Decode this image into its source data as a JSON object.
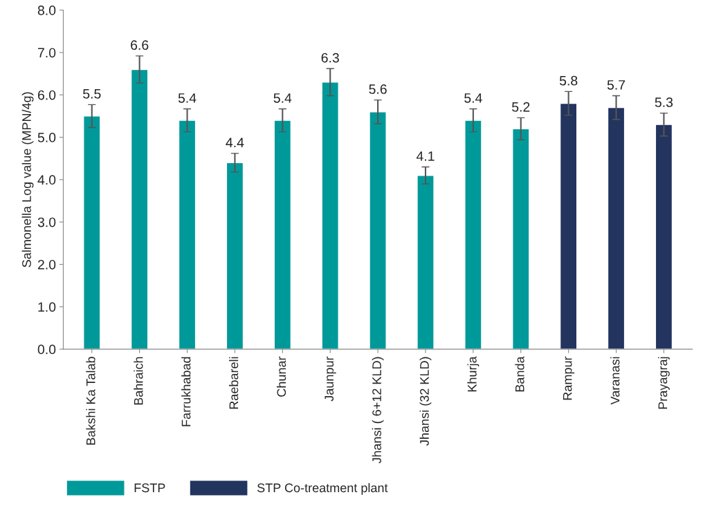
{
  "chart_data": {
    "type": "bar",
    "ylabel": "Salmonella Log value (MPN/4g)",
    "categories": [
      "Bakshi Ka Talab",
      "Bahraich",
      "Farrukhabad",
      "Raebareli",
      "Chunar",
      "Jaunpur",
      "Jhansi ( 6+12 KLD)",
      "Jhansi (32 KLD)",
      "Khurja",
      "Banda",
      "Rampur",
      "Varanasi",
      "Prayagraj"
    ],
    "series": [
      {
        "name": "FSTP",
        "color": "#009999",
        "values": [
          5.5,
          6.6,
          5.4,
          4.4,
          5.4,
          6.3,
          5.6,
          4.1,
          5.4,
          5.2,
          null,
          null,
          null
        ],
        "errors": [
          0.27,
          0.32,
          0.27,
          0.22,
          0.27,
          0.32,
          0.28,
          0.2,
          0.27,
          0.26,
          null,
          null,
          null
        ]
      },
      {
        "name": "STP Co-treatment plant",
        "color": "#23345f",
        "values": [
          null,
          null,
          null,
          null,
          null,
          null,
          null,
          null,
          null,
          null,
          5.8,
          5.7,
          5.3
        ],
        "errors": [
          null,
          null,
          null,
          null,
          null,
          null,
          null,
          null,
          null,
          null,
          0.28,
          0.28,
          0.27
        ]
      }
    ],
    "ylim": [
      0,
      8
    ],
    "yticks": [
      {
        "value": 0,
        "label": "0.0"
      },
      {
        "value": 1,
        "label": "1.0"
      },
      {
        "value": 2,
        "label": "2.0"
      },
      {
        "value": 3,
        "label": "3.0"
      },
      {
        "value": 4,
        "label": "4.0"
      },
      {
        "value": 5,
        "label": "5.0"
      },
      {
        "value": 6,
        "label": "6.0"
      },
      {
        "value": 7,
        "label": "7.0"
      },
      {
        "value": 8,
        "label": "8.0"
      }
    ],
    "data_labels": true,
    "grid": false,
    "legend": "bottom left"
  }
}
